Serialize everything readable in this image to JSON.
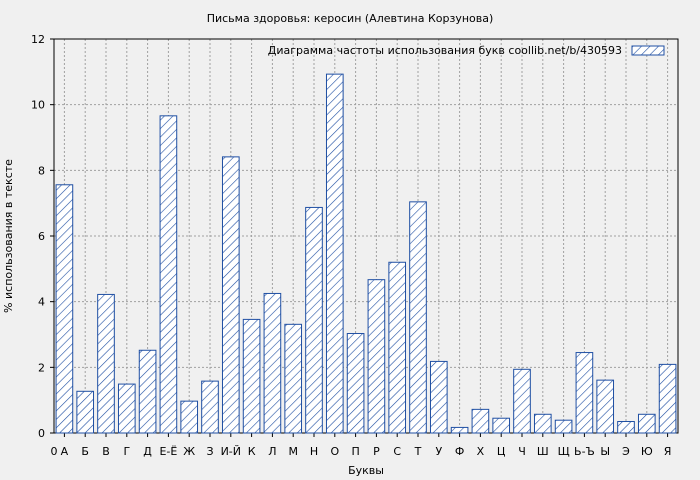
{
  "chart_data": {
    "type": "bar",
    "title": "Письма здоровья: керосин (Алевтина Корзунова)",
    "xlabel": "Буквы",
    "ylabel": "% использования в тексте",
    "legend": {
      "label": "Диаграмма частоты использования букв  coollib.net/b/430593",
      "placement": "top-right"
    },
    "ylim": [
      0,
      12
    ],
    "yticks": [
      0,
      2,
      4,
      6,
      8,
      10,
      12
    ],
    "grid": true,
    "x_origin_label": "0",
    "categories": [
      "А",
      "Б",
      "В",
      "Г",
      "Д",
      "Е-Ё",
      "Ж",
      "З",
      "И-Й",
      "К",
      "Л",
      "М",
      "Н",
      "О",
      "П",
      "Р",
      "С",
      "Т",
      "У",
      "Ф",
      "Х",
      "Ц",
      "Ч",
      "Ш",
      "Щ",
      "Ь-Ъ",
      "Ы",
      "Э",
      "Ю",
      "Я"
    ],
    "series": [
      {
        "values": [
          7.56,
          1.27,
          4.22,
          1.49,
          2.52,
          9.66,
          0.97,
          1.58,
          8.41,
          3.46,
          4.25,
          3.31,
          6.87,
          10.93,
          3.03,
          4.67,
          5.2,
          7.04,
          2.18,
          0.17,
          0.72,
          0.45,
          1.94,
          0.57,
          0.39,
          2.45,
          1.61,
          0.35,
          0.57,
          2.09
        ]
      }
    ],
    "colors": {
      "bar_stroke": "#1f4fa3",
      "hatch": "#1f4fa3",
      "grid": "#a0a0a0",
      "background": "#f0f0f0"
    }
  }
}
